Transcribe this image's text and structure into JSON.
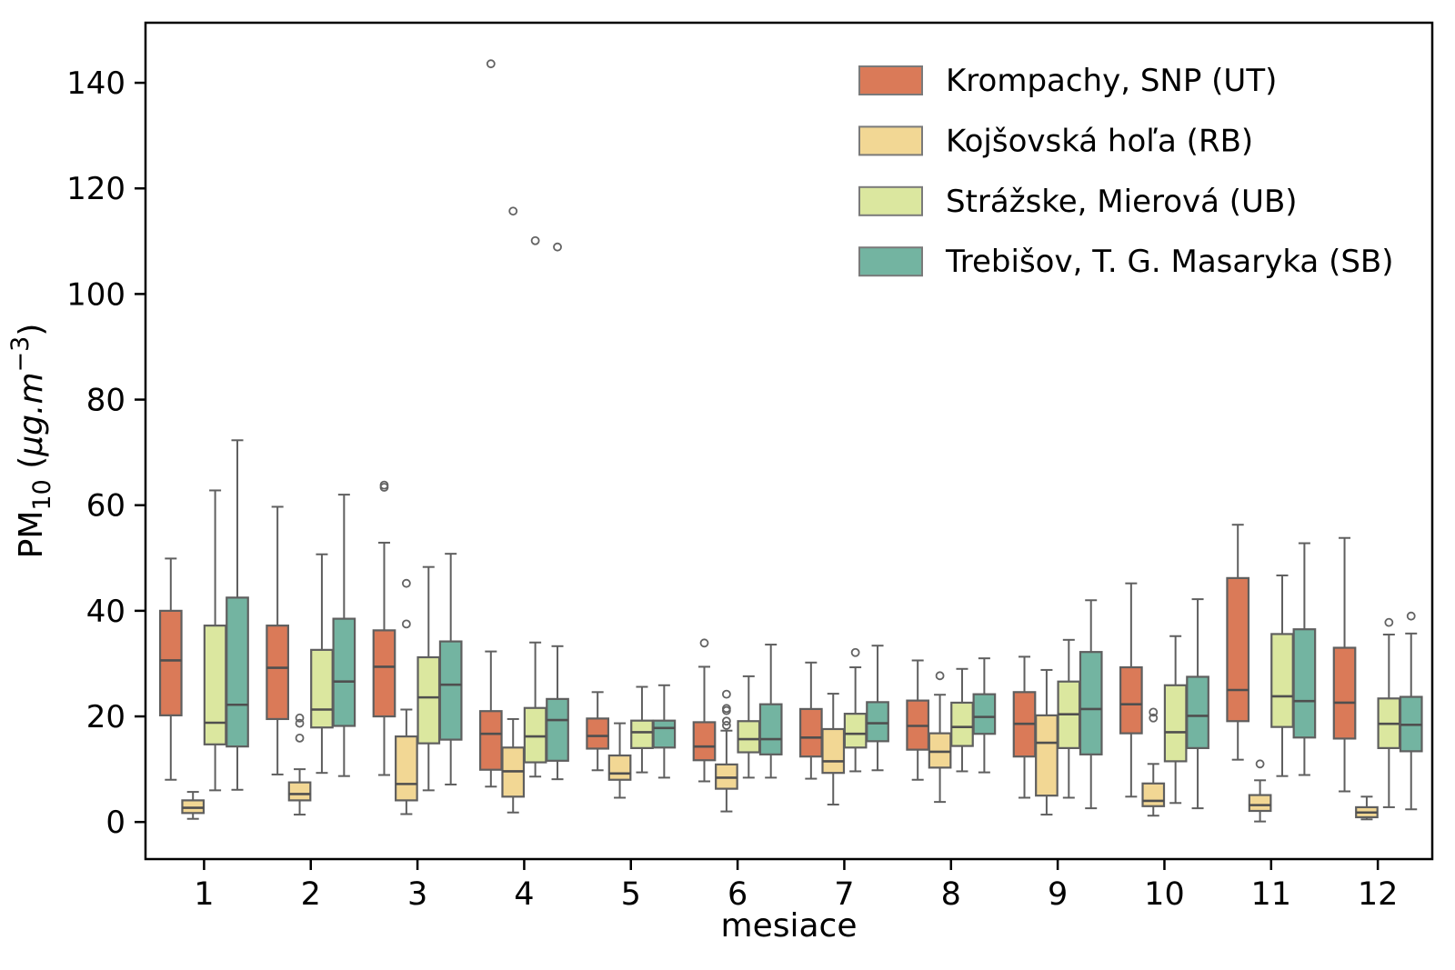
{
  "chart_data": {
    "type": "boxplot",
    "title": "",
    "xlabel": "mesiace",
    "ylabel": "PM₁₀ (μg.m⁻³)",
    "ylabel_parts": [
      {
        "t": "PM"
      },
      {
        "t": "10",
        "sub": true
      },
      {
        "t": " ("
      },
      {
        "t": "μg.m",
        "italic": true
      },
      {
        "t": "−3",
        "sup": true
      },
      {
        "t": ")"
      }
    ],
    "categories": [
      "1",
      "2",
      "3",
      "4",
      "5",
      "6",
      "7",
      "8",
      "9",
      "10",
      "11",
      "12"
    ],
    "yticks": [
      0,
      20,
      40,
      60,
      80,
      100,
      120,
      140
    ],
    "ylim": [
      -7,
      151.4
    ],
    "grid": false,
    "legend_position": "upper right inside",
    "styles": {
      "frame_color": "#000000",
      "box_edge_color": "#5f5f5f",
      "whisker_color": "#5f5f5f",
      "median_color": "#4f4f4f",
      "flier_edge_color": "#636363",
      "background": "#ffffff"
    },
    "series": [
      {
        "name": "Krompachy, SNP (UT)",
        "color": "#DA7A58",
        "boxes": [
          {
            "lo": 8.0,
            "q1": 20.2,
            "med": 30.6,
            "q3": 40.0,
            "hi": 49.9,
            "out": []
          },
          {
            "lo": 9.0,
            "q1": 19.5,
            "med": 29.2,
            "q3": 37.2,
            "hi": 59.7,
            "out": []
          },
          {
            "lo": 8.9,
            "q1": 20.0,
            "med": 29.4,
            "q3": 36.3,
            "hi": 52.9,
            "out": [
              63.4,
              63.8
            ]
          },
          {
            "lo": 6.7,
            "q1": 9.9,
            "med": 16.7,
            "q3": 21.0,
            "hi": 32.3,
            "out": [
              143.6
            ]
          },
          {
            "lo": 9.8,
            "q1": 13.9,
            "med": 16.3,
            "q3": 19.6,
            "hi": 24.6,
            "out": []
          },
          {
            "lo": 7.7,
            "q1": 11.7,
            "med": 14.3,
            "q3": 18.9,
            "hi": 29.4,
            "out": [
              33.9
            ]
          },
          {
            "lo": 8.2,
            "q1": 12.4,
            "med": 16.0,
            "q3": 21.4,
            "hi": 30.2,
            "out": []
          },
          {
            "lo": 8.0,
            "q1": 13.7,
            "med": 18.2,
            "q3": 23.0,
            "hi": 30.6,
            "out": []
          },
          {
            "lo": 4.6,
            "q1": 12.4,
            "med": 18.6,
            "q3": 24.6,
            "hi": 31.3,
            "out": []
          },
          {
            "lo": 4.8,
            "q1": 16.8,
            "med": 22.3,
            "q3": 29.3,
            "hi": 45.2,
            "out": []
          },
          {
            "lo": 11.8,
            "q1": 19.1,
            "med": 25.0,
            "q3": 46.2,
            "hi": 56.3,
            "out": []
          },
          {
            "lo": 5.8,
            "q1": 15.8,
            "med": 22.6,
            "q3": 33.0,
            "hi": 53.8,
            "out": []
          }
        ]
      },
      {
        "name": "Kojšovská hoľa (RB)",
        "color": "#F2D794",
        "boxes": [
          {
            "lo": 0.6,
            "q1": 1.7,
            "med": 2.7,
            "q3": 4.1,
            "hi": 5.7,
            "out": []
          },
          {
            "lo": 1.4,
            "q1": 4.1,
            "med": 5.3,
            "q3": 7.5,
            "hi": 10.0,
            "out": [
              15.9,
              18.7,
              19.7
            ]
          },
          {
            "lo": 1.5,
            "q1": 4.1,
            "med": 7.2,
            "q3": 16.2,
            "hi": 21.3,
            "out": [
              37.5,
              45.2
            ]
          },
          {
            "lo": 1.8,
            "q1": 4.8,
            "med": 9.6,
            "q3": 14.1,
            "hi": 19.5,
            "out": [
              115.7
            ]
          },
          {
            "lo": 4.6,
            "q1": 8.0,
            "med": 9.2,
            "q3": 12.6,
            "hi": 18.7,
            "out": []
          },
          {
            "lo": 2.0,
            "q1": 6.3,
            "med": 8.4,
            "q3": 10.9,
            "hi": 17.3,
            "out": [
              18.3,
              19.1,
              21.1,
              21.5,
              24.2
            ]
          },
          {
            "lo": 3.3,
            "q1": 9.3,
            "med": 11.5,
            "q3": 17.6,
            "hi": 24.3,
            "out": []
          },
          {
            "lo": 3.8,
            "q1": 10.3,
            "med": 13.3,
            "q3": 16.8,
            "hi": 24.1,
            "out": [
              27.7
            ]
          },
          {
            "lo": 1.4,
            "q1": 5.0,
            "med": 15.0,
            "q3": 20.2,
            "hi": 28.8,
            "out": []
          },
          {
            "lo": 1.2,
            "q1": 3.0,
            "med": 4.0,
            "q3": 7.3,
            "hi": 11.0,
            "out": [
              19.7,
              20.8
            ]
          },
          {
            "lo": 0.1,
            "q1": 2.1,
            "med": 3.2,
            "q3": 5.1,
            "hi": 7.9,
            "out": [
              11.0
            ]
          },
          {
            "lo": 0.5,
            "q1": 0.9,
            "med": 1.8,
            "q3": 2.8,
            "hi": 4.8,
            "out": []
          }
        ]
      },
      {
        "name": "Strážske, Mierová (UB)",
        "color": "#DBE79F",
        "boxes": [
          {
            "lo": 6.0,
            "q1": 14.7,
            "med": 18.8,
            "q3": 37.2,
            "hi": 62.8,
            "out": []
          },
          {
            "lo": 9.3,
            "q1": 17.9,
            "med": 21.3,
            "q3": 32.6,
            "hi": 50.7,
            "out": []
          },
          {
            "lo": 6.0,
            "q1": 14.9,
            "med": 23.6,
            "q3": 31.2,
            "hi": 48.3,
            "out": []
          },
          {
            "lo": 8.6,
            "q1": 11.3,
            "med": 16.2,
            "q3": 21.6,
            "hi": 34.0,
            "out": [
              110.1
            ]
          },
          {
            "lo": 9.4,
            "q1": 14.0,
            "med": 17.0,
            "q3": 19.2,
            "hi": 25.6,
            "out": []
          },
          {
            "lo": 8.4,
            "q1": 13.2,
            "med": 15.7,
            "q3": 19.1,
            "hi": 27.6,
            "out": []
          },
          {
            "lo": 9.6,
            "q1": 14.1,
            "med": 16.7,
            "q3": 20.5,
            "hi": 29.3,
            "out": [
              32.1
            ]
          },
          {
            "lo": 9.6,
            "q1": 14.4,
            "med": 18.0,
            "q3": 22.6,
            "hi": 29.0,
            "out": []
          },
          {
            "lo": 4.6,
            "q1": 14.0,
            "med": 20.4,
            "q3": 26.6,
            "hi": 34.5,
            "out": []
          },
          {
            "lo": 3.6,
            "q1": 11.5,
            "med": 17.0,
            "q3": 25.9,
            "hi": 35.2,
            "out": []
          },
          {
            "lo": 8.7,
            "q1": 18.0,
            "med": 23.8,
            "q3": 35.6,
            "hi": 46.7,
            "out": []
          },
          {
            "lo": 2.8,
            "q1": 14.0,
            "med": 18.6,
            "q3": 23.4,
            "hi": 35.5,
            "out": [
              37.8
            ]
          }
        ]
      },
      {
        "name": "Trebišov, T. G. Masaryka (SB)",
        "color": "#73B4A1",
        "boxes": [
          {
            "lo": 6.1,
            "q1": 14.3,
            "med": 22.2,
            "q3": 42.5,
            "hi": 72.3,
            "out": []
          },
          {
            "lo": 8.7,
            "q1": 18.2,
            "med": 26.6,
            "q3": 38.5,
            "hi": 62.0,
            "out": []
          },
          {
            "lo": 7.1,
            "q1": 15.6,
            "med": 26.0,
            "q3": 34.2,
            "hi": 50.8,
            "out": []
          },
          {
            "lo": 8.1,
            "q1": 11.6,
            "med": 19.3,
            "q3": 23.3,
            "hi": 33.3,
            "out": [
              108.9
            ]
          },
          {
            "lo": 8.4,
            "q1": 14.1,
            "med": 17.8,
            "q3": 19.2,
            "hi": 25.9,
            "out": []
          },
          {
            "lo": 8.4,
            "q1": 12.8,
            "med": 15.7,
            "q3": 22.3,
            "hi": 33.6,
            "out": []
          },
          {
            "lo": 9.8,
            "q1": 15.3,
            "med": 18.7,
            "q3": 22.7,
            "hi": 33.4,
            "out": []
          },
          {
            "lo": 9.4,
            "q1": 16.7,
            "med": 19.9,
            "q3": 24.2,
            "hi": 31.0,
            "out": []
          },
          {
            "lo": 2.6,
            "q1": 12.8,
            "med": 21.4,
            "q3": 32.2,
            "hi": 42.0,
            "out": []
          },
          {
            "lo": 2.6,
            "q1": 14.0,
            "med": 20.1,
            "q3": 27.5,
            "hi": 42.2,
            "out": []
          },
          {
            "lo": 8.9,
            "q1": 16.0,
            "med": 22.9,
            "q3": 36.5,
            "hi": 52.8,
            "out": []
          },
          {
            "lo": 2.4,
            "q1": 13.4,
            "med": 18.4,
            "q3": 23.7,
            "hi": 35.7,
            "out": [
              39.0
            ]
          }
        ]
      }
    ]
  }
}
